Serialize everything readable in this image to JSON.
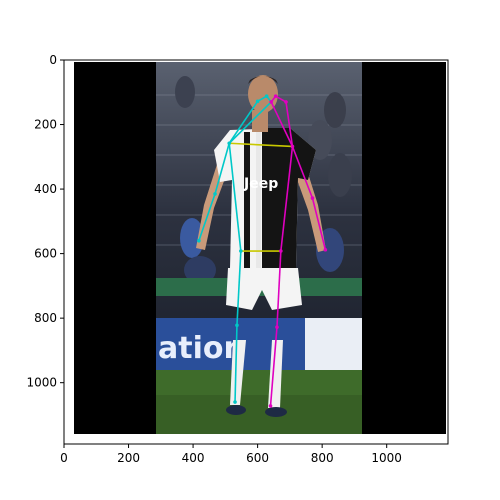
{
  "figure": {
    "image_description_hidden": "",
    "x_ticks": [
      "0",
      "200",
      "400",
      "600",
      "800",
      "1000"
    ],
    "y_ticks": [
      "0",
      "200",
      "400",
      "600",
      "800",
      "1000"
    ],
    "x_tick_values": [
      0,
      200,
      400,
      600,
      800,
      1000
    ],
    "y_tick_values": [
      0,
      200,
      400,
      600,
      800,
      1000
    ],
    "x_range": [
      0,
      1190
    ],
    "y_range": [
      1190,
      0
    ],
    "colors": {
      "left_side": "#00c8c8",
      "right_side": "#e000c0",
      "torso_cross": "#c8c800",
      "letterbox": "#000000",
      "grass": "#3e6b2a",
      "stands": "#2b2f3a",
      "banner": "#2a4f9a"
    }
  },
  "keypoints": {
    "nose": [
      642,
      130
    ],
    "left_eye": [
      656,
      112
    ],
    "right_eye": [
      628,
      112
    ],
    "left_ear": [
      688,
      130
    ],
    "right_ear": [
      600,
      128
    ],
    "left_shoulder": [
      708,
      268
    ],
    "right_shoulder": [
      512,
      258
    ],
    "left_elbow": [
      770,
      428
    ],
    "right_elbow": [
      468,
      415
    ],
    "left_wrist": [
      810,
      588
    ],
    "right_wrist": [
      418,
      560
    ],
    "left_hip": [
      672,
      592
    ],
    "right_hip": [
      548,
      592
    ],
    "left_knee": [
      660,
      828
    ],
    "right_knee": [
      536,
      822
    ],
    "left_ankle": [
      640,
      1072
    ],
    "right_ankle": [
      530,
      1060
    ]
  },
  "image_bounds": {
    "photo_x": [
      28,
      1184
    ],
    "photo_y": [
      8,
      1160
    ],
    "left_bar_x": [
      28,
      283
    ],
    "right_bar_x": [
      930,
      1184
    ]
  }
}
